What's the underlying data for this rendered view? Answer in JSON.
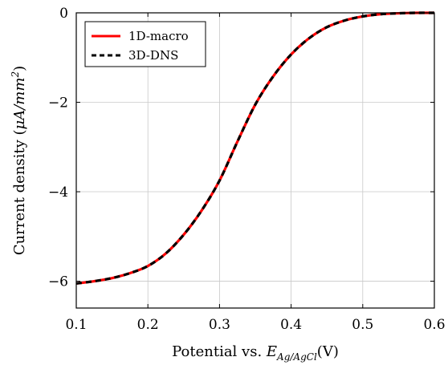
{
  "chart_data": {
    "type": "line",
    "xlabel": "Potential vs. E_{Ag/AgCl}(V)",
    "xlabel_parts": {
      "main": "Potential vs. ",
      "var": "E",
      "sub": "Ag/AgCl",
      "tail": "(V)"
    },
    "ylabel": "Current density (μA/mm²)",
    "ylabel_parts": {
      "main": "Current density (",
      "var": "μA/mm",
      "sup": "2",
      "tail": ")"
    },
    "xlim": [
      0.1,
      0.6
    ],
    "ylim": [
      -6.6,
      0
    ],
    "x_ticks": [
      0.1,
      0.2,
      0.3,
      0.4,
      0.5,
      0.6
    ],
    "x_tick_labels": [
      "0.1",
      "0.2",
      "0.3",
      "0.4",
      "0.5",
      "0.6"
    ],
    "y_ticks": [
      0,
      -2,
      -4,
      -6
    ],
    "y_tick_labels": [
      "0",
      "−2",
      "−4",
      "−6"
    ],
    "grid": true,
    "legend_position": "top-left",
    "x": [
      0.1,
      0.125,
      0.15,
      0.175,
      0.2,
      0.225,
      0.25,
      0.275,
      0.3,
      0.325,
      0.35,
      0.375,
      0.4,
      0.425,
      0.45,
      0.475,
      0.5,
      0.525,
      0.55,
      0.575,
      0.6
    ],
    "series": [
      {
        "name": "1D-macro",
        "color": "#ff0000",
        "style": "solid",
        "values": [
          -6.05,
          -6.0,
          -5.93,
          -5.82,
          -5.66,
          -5.38,
          -4.96,
          -4.42,
          -3.75,
          -2.88,
          -2.05,
          -1.42,
          -0.93,
          -0.57,
          -0.32,
          -0.17,
          -0.08,
          -0.03,
          -0.01,
          0.0,
          0.0
        ]
      },
      {
        "name": "3D-DNS",
        "color": "#000000",
        "style": "dashed",
        "values": [
          -6.05,
          -6.0,
          -5.93,
          -5.82,
          -5.66,
          -5.38,
          -4.96,
          -4.42,
          -3.75,
          -2.88,
          -2.05,
          -1.42,
          -0.93,
          -0.57,
          -0.32,
          -0.17,
          -0.08,
          -0.03,
          -0.01,
          0.0,
          0.0
        ]
      }
    ]
  }
}
